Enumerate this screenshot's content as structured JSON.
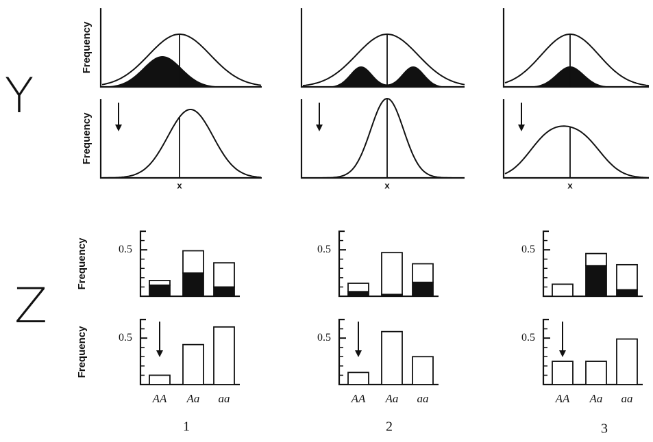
{
  "row_labels": [
    "Y",
    "Z"
  ],
  "columns": [
    "1",
    "2",
    "3"
  ],
  "curve_panels": [
    {
      "ylabel": "Frequency"
    },
    {
      "ylabel": "Frequency",
      "xlabel": "x"
    },
    {},
    {
      "xlabel": "x"
    },
    {},
    {
      "xlabel": "x"
    }
  ],
  "chart_data": [
    {
      "type": "bar",
      "ylabel": "Frequency",
      "categories": [
        "AA",
        "Aa",
        "aa"
      ],
      "ylim": [
        0,
        0.7
      ],
      "yticks": [
        0.5
      ],
      "minor_yticks": [
        0.1,
        0.2,
        0.3,
        0.4,
        0.6
      ],
      "series": [
        {
          "color": "#111111",
          "values": [
            0.12,
            0.25,
            0.1
          ]
        },
        {
          "color": "#ffffff",
          "values": [
            0.05,
            0.24,
            0.26
          ]
        }
      ]
    },
    {
      "type": "bar",
      "ylabel": "Frequency",
      "categories": [
        "AA",
        "Aa",
        "aa"
      ],
      "ylim": [
        0,
        0.7
      ],
      "yticks": [
        0.5
      ],
      "minor_yticks": [
        0.1,
        0.2,
        0.3,
        0.4,
        0.6
      ],
      "series": [
        {
          "color": "#ffffff",
          "values": [
            0.1,
            0.43,
            0.62
          ]
        }
      ]
    },
    {
      "type": "bar",
      "categories": [
        "AA",
        "Aa",
        "aa"
      ],
      "ylim": [
        0,
        0.7
      ],
      "yticks": [
        0.5
      ],
      "minor_yticks": [
        0.1,
        0.2,
        0.3,
        0.4,
        0.6
      ],
      "series": [
        {
          "color": "#111111",
          "values": [
            0.05,
            0.02,
            0.15
          ]
        },
        {
          "color": "#ffffff",
          "values": [
            0.09,
            0.45,
            0.2
          ]
        }
      ]
    },
    {
      "type": "bar",
      "categories": [
        "AA",
        "Aa",
        "aa"
      ],
      "ylim": [
        0,
        0.7
      ],
      "yticks": [
        0.5
      ],
      "minor_yticks": [
        0.1,
        0.2,
        0.3,
        0.4,
        0.6
      ],
      "series": [
        {
          "color": "#ffffff",
          "values": [
            0.13,
            0.57,
            0.3
          ]
        }
      ]
    },
    {
      "type": "bar",
      "categories": [
        "AA",
        "Aa",
        "aa"
      ],
      "ylim": [
        0,
        0.7
      ],
      "yticks": [
        0.5
      ],
      "minor_yticks": [
        0.1,
        0.2,
        0.3,
        0.4,
        0.6
      ],
      "series": [
        {
          "color": "#111111",
          "values": [
            0,
            0.33,
            0.07
          ]
        },
        {
          "color": "#ffffff",
          "values": [
            0.13,
            0.13,
            0.27
          ]
        }
      ]
    },
    {
      "type": "bar",
      "categories": [
        "AA",
        "Aa",
        "aa"
      ],
      "ylim": [
        0,
        0.7
      ],
      "yticks": [
        0.5
      ],
      "minor_yticks": [
        0.1,
        0.2,
        0.3,
        0.4,
        0.6
      ],
      "series": [
        {
          "color": "#ffffff",
          "values": [
            0.25,
            0.25,
            0.49
          ]
        }
      ]
    }
  ]
}
